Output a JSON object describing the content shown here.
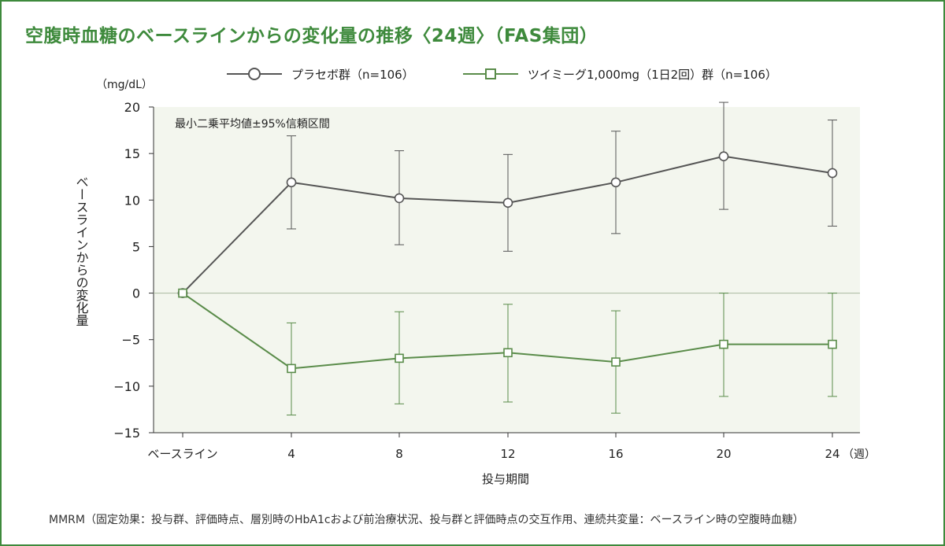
{
  "title": "空腹時血糖のベースラインからの変化量の推移〈24週〉（FAS集団）",
  "footnote": "MMRM（固定効果：投与群、評価時点、層別時のHbA1cおよび前治療状況、投与群と評価時点の交互作用、連続共変量：ベースライン時の空腹時血糖）",
  "colors": {
    "accent": "#3e8a3c",
    "placebo": "#555555",
    "drug": "#5a8c4a",
    "plot_bg": "#f3f6ee"
  },
  "chart_data": {
    "type": "line",
    "title": "空腹時血糖のベースラインからの変化量の推移〈24週〉（FAS集団）",
    "annotation": "最小二乗平均値±95%信頼区間",
    "y_unit": "（mg/dL）",
    "ylabel": "ベースラインからの変化量",
    "xlabel": "投与期間",
    "x_unit": "（週）",
    "ylim": [
      -15,
      20
    ],
    "yticks": [
      20,
      15,
      10,
      5,
      0,
      -5,
      -10,
      -15
    ],
    "ytick_labels": [
      "20",
      "15",
      "10",
      "5",
      "0",
      "−5",
      "−10",
      "−15"
    ],
    "categories": [
      "ベースライン",
      "4",
      "8",
      "12",
      "16",
      "20",
      "24"
    ],
    "legend_position": "top",
    "series": [
      {
        "name": "プラセボ群（n=106）",
        "marker": "circle",
        "values": [
          0,
          11.9,
          10.2,
          9.7,
          11.9,
          14.7,
          12.9
        ],
        "ci_low": [
          0,
          6.9,
          5.2,
          4.5,
          6.4,
          9.0,
          7.2
        ],
        "ci_high": [
          0,
          16.9,
          15.3,
          14.9,
          17.4,
          20.5,
          18.6
        ]
      },
      {
        "name": "ツイミーグ1,000mg（1日2回）群（n=106）",
        "marker": "square",
        "values": [
          0,
          -8.1,
          -7.0,
          -6.4,
          -7.4,
          -5.5,
          -5.5
        ],
        "ci_low": [
          0,
          -13.1,
          -11.9,
          -11.7,
          -12.9,
          -11.1,
          -11.1
        ],
        "ci_high": [
          0,
          -3.2,
          -2.0,
          -1.2,
          -1.9,
          0.0,
          0.0
        ]
      }
    ]
  }
}
